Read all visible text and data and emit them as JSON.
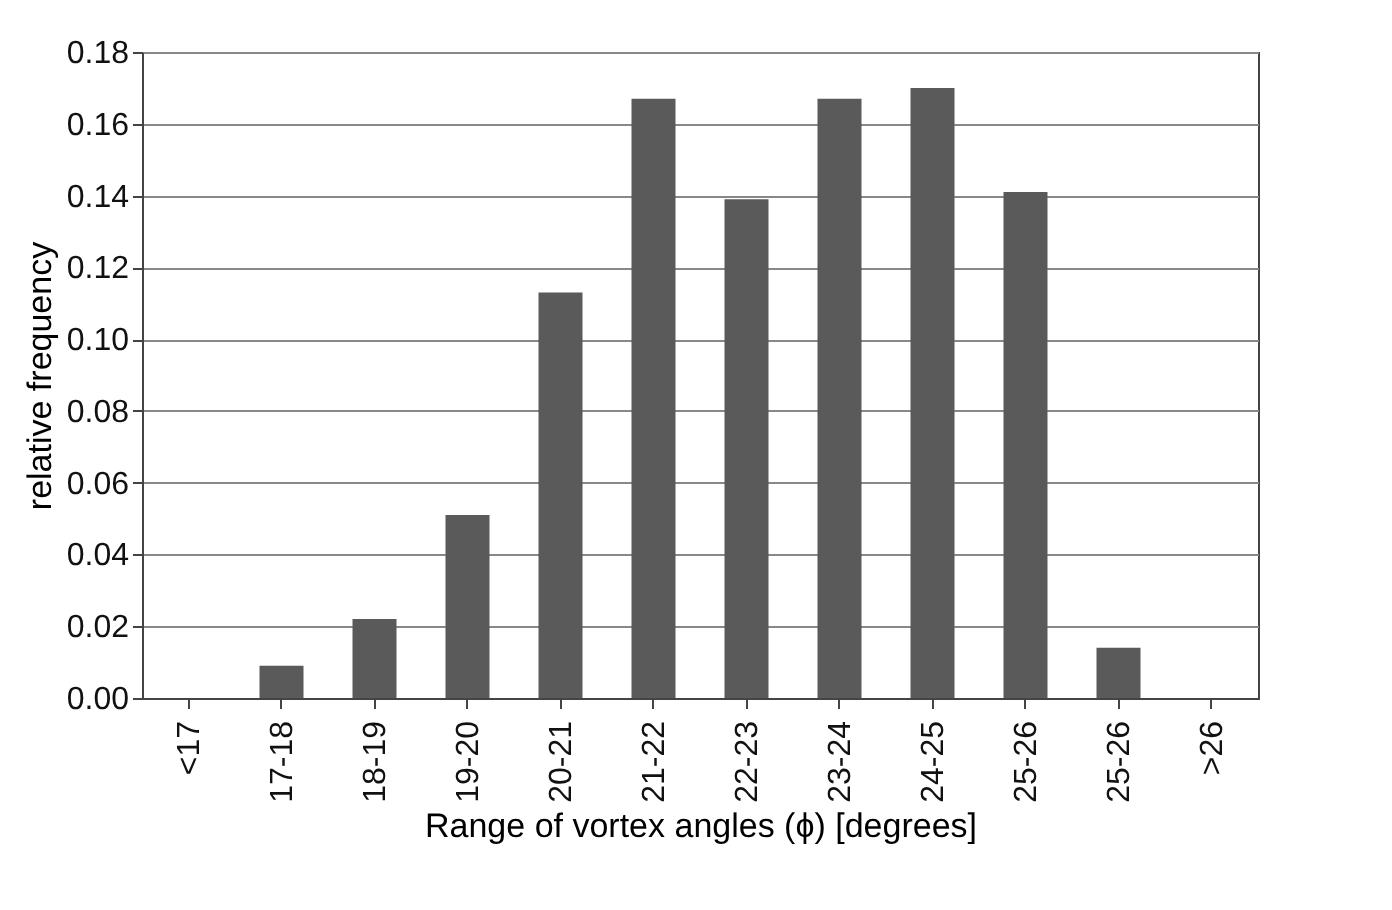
{
  "chart_data": {
    "type": "bar",
    "xlabel": "Range of vortex angles (ϕ) [degrees]",
    "ylabel": "relative frequency",
    "categories": [
      "<17",
      "17-18",
      "18-19",
      "19-20",
      "20-21",
      "21-22",
      "22-23",
      "23-24",
      "24-25",
      "25-26",
      "25-26",
      ">26"
    ],
    "values": [
      0,
      0.009,
      0.022,
      0.051,
      0.113,
      0.167,
      0.139,
      0.167,
      0.17,
      0.141,
      0.014,
      0
    ],
    "color": "#5a5a5a",
    "ylim": [
      0,
      0.18
    ],
    "yticks": [
      {
        "value": 0,
        "label": "0.00"
      },
      {
        "value": 0.02,
        "label": "0.02"
      },
      {
        "value": 0.04,
        "label": "0.04"
      },
      {
        "value": 0.06,
        "label": "0.06"
      },
      {
        "value": 0.08,
        "label": "0.08"
      },
      {
        "value": 0.1,
        "label": "0.10"
      },
      {
        "value": 0.12,
        "label": "0.12"
      },
      {
        "value": 0.14,
        "label": "0.14"
      },
      {
        "value": 0.16,
        "label": "0.16"
      },
      {
        "value": 0.18,
        "label": "0.18"
      }
    ],
    "grid": "y"
  }
}
